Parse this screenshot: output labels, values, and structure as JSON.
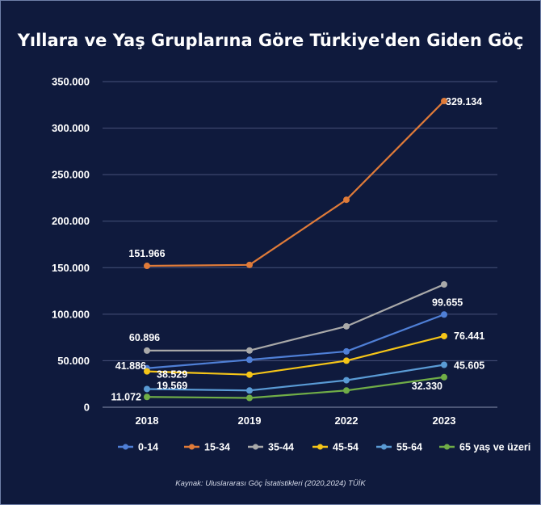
{
  "chart_data": {
    "type": "line",
    "title": "Yıllara ve Yaş Gruplarına Göre Türkiye'den Giden Göç",
    "xlabel": "",
    "ylabel": "",
    "categories": [
      "2018",
      "2019",
      "2022",
      "2023"
    ],
    "ylim": [
      0,
      350000
    ],
    "yticks": [
      0,
      50000,
      100000,
      150000,
      200000,
      250000,
      300000,
      350000
    ],
    "ytick_labels": [
      "0",
      "50.000",
      "100.000",
      "150.000",
      "200.000",
      "250.000",
      "300.000",
      "350.000"
    ],
    "grid": true,
    "legend_position": "bottom",
    "series": [
      {
        "name": "0-14",
        "color": "#4f7fd6",
        "values": [
          41886,
          51000,
          60000,
          99655
        ]
      },
      {
        "name": "15-34",
        "color": "#e07b39",
        "values": [
          151966,
          153000,
          223000,
          329134
        ]
      },
      {
        "name": "35-44",
        "color": "#a9a9a9",
        "values": [
          60896,
          61000,
          87000,
          132000
        ]
      },
      {
        "name": "45-54",
        "color": "#f5c518",
        "values": [
          38529,
          35000,
          50000,
          76441
        ]
      },
      {
        "name": "55-64",
        "color": "#5a9bd5",
        "values": [
          19569,
          18000,
          29000,
          45605
        ]
      },
      {
        "name": "65 yaş ve üzeri",
        "color": "#70ad47",
        "values": [
          11072,
          10000,
          18000,
          32330
        ]
      }
    ],
    "data_labels": [
      {
        "series": "15-34",
        "category": "2018",
        "text": "151.966"
      },
      {
        "series": "15-34",
        "category": "2023",
        "text": "329.134"
      },
      {
        "series": "35-44",
        "category": "2018",
        "text": "60.896"
      },
      {
        "series": "0-14",
        "category": "2018",
        "text": "41.886"
      },
      {
        "series": "0-14",
        "category": "2023",
        "text": "99.655"
      },
      {
        "series": "45-54",
        "category": "2018",
        "text": "38.529"
      },
      {
        "series": "45-54",
        "category": "2023",
        "text": "76.441"
      },
      {
        "series": "55-64",
        "category": "2018",
        "text": "19.569"
      },
      {
        "series": "55-64",
        "category": "2023",
        "text": "45.605"
      },
      {
        "series": "65 yaş ve üzeri",
        "category": "2018",
        "text": "11.072"
      },
      {
        "series": "65 yaş ve üzeri",
        "category": "2023",
        "text": "32.330"
      }
    ]
  },
  "source_note": "Kaynak: Uluslararası Göç İstatistikleri (2020,2024) TÜİK"
}
